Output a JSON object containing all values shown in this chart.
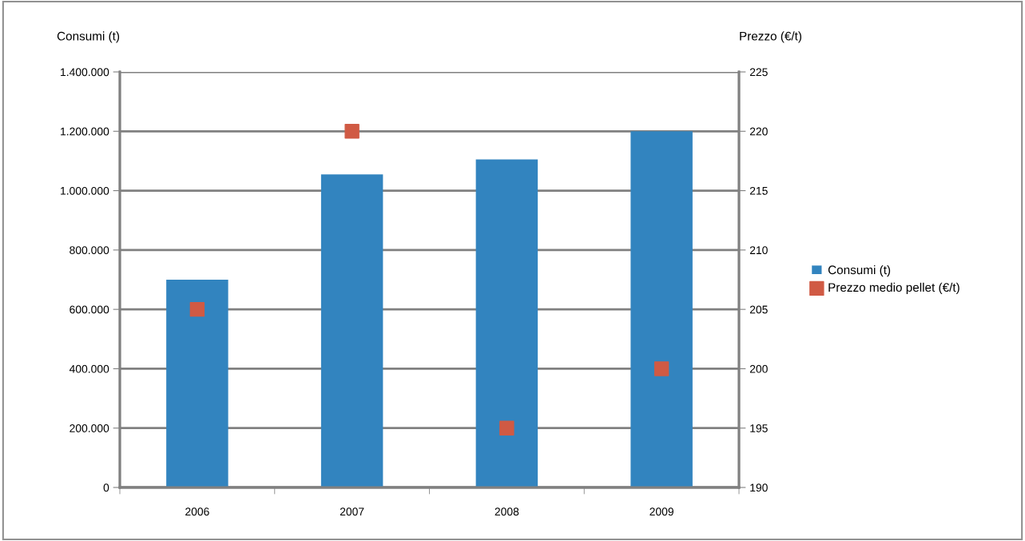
{
  "chart_data": {
    "type": "bar",
    "ylabel": "Consumi (t)",
    "y2label": "Prezzo (€/t)",
    "categories": [
      "2006",
      "2007",
      "2008",
      "2009"
    ],
    "series": [
      {
        "name": "Consumi (t)",
        "color": "#3284bf",
        "values": [
          700000,
          1055000,
          1105000,
          1200000
        ]
      },
      {
        "name": "Prezzo medio pellet (€/t)",
        "type": "scatter",
        "axis": "y2",
        "marker": "square",
        "color": "#d05a44",
        "values": [
          205,
          220,
          195,
          200
        ]
      }
    ],
    "ylim": [
      0,
      1400000
    ],
    "yticks": [
      0,
      {
        "value": 200000,
        "label": "200.000"
      },
      {
        "value": 400000,
        "label": "400.000"
      },
      {
        "value": 600000,
        "label": "600.000"
      },
      {
        "value": 800000,
        "label": "800.000"
      },
      {
        "value": 1000000,
        "label": "1.000.000"
      },
      {
        "value": 1200000,
        "label": "1.200.000"
      },
      {
        "value": 1400000,
        "label": "1.400.000"
      }
    ],
    "y2lim": [
      190,
      225
    ],
    "y2ticks": [
      190,
      195,
      200,
      205,
      210,
      215,
      220,
      225
    ],
    "grid": "y",
    "legend": "right"
  }
}
